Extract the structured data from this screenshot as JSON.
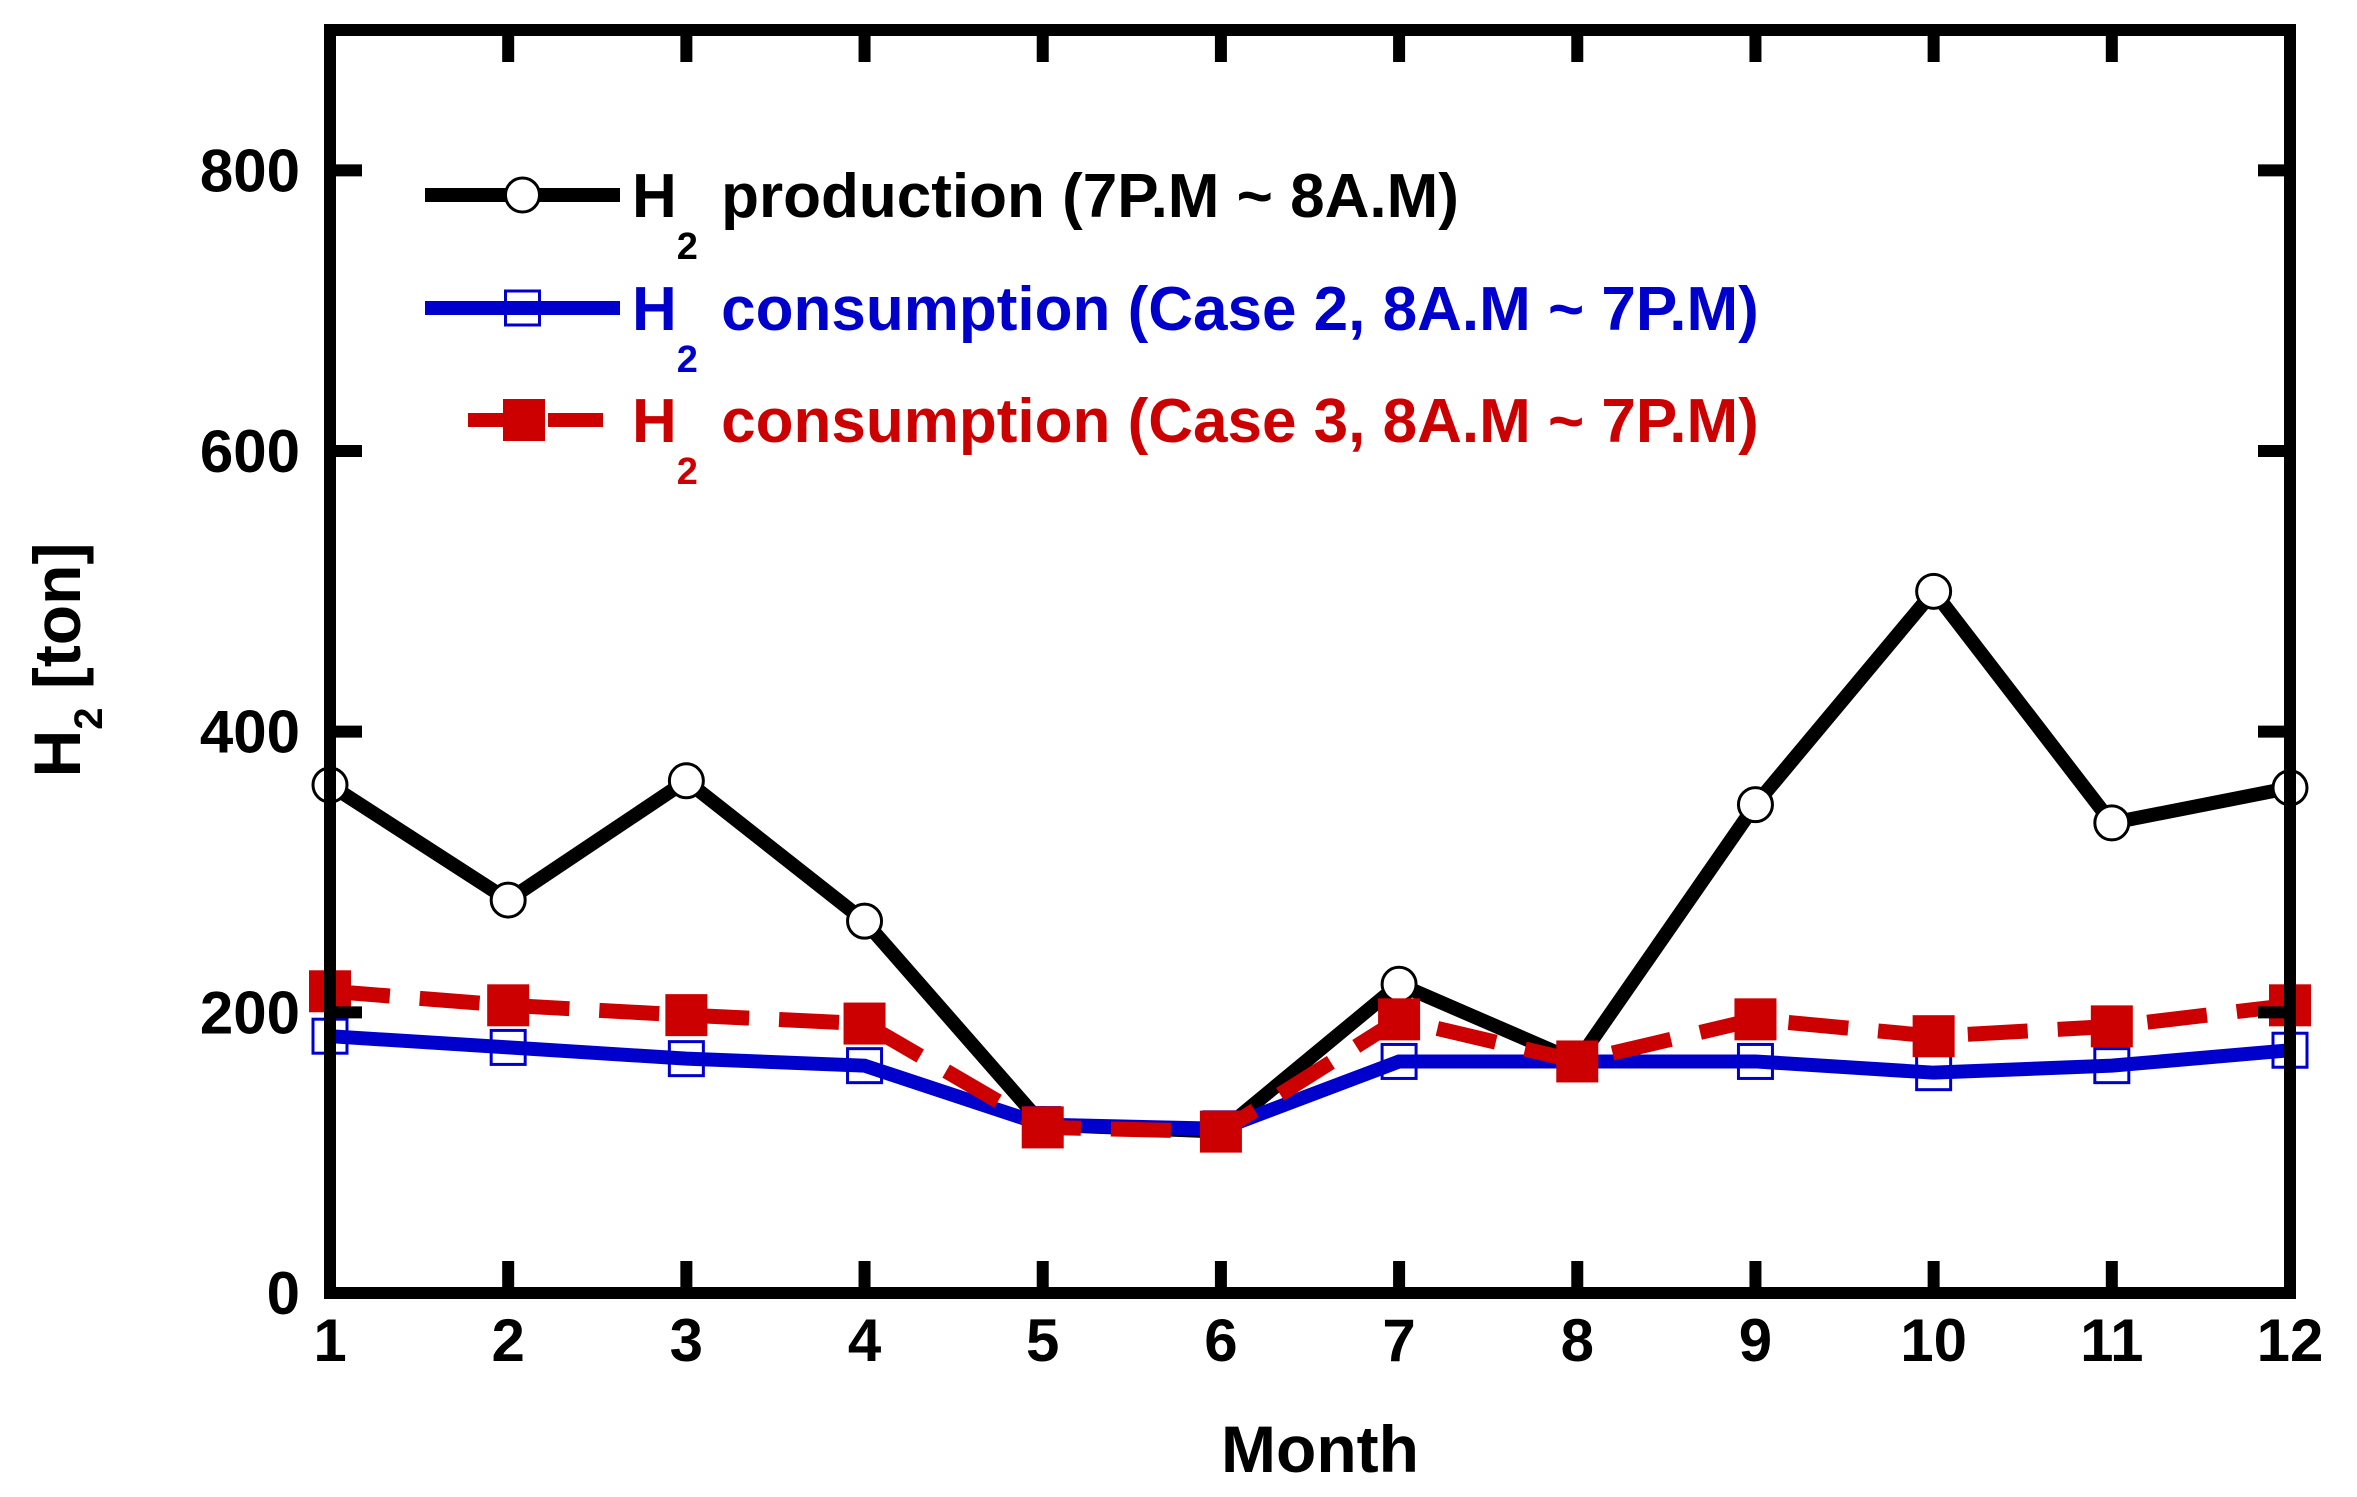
{
  "chart_data": {
    "type": "line",
    "xlabel": "Month",
    "ylabel": "H2 [ton]",
    "ylabel_parts": {
      "main": "H",
      "sub": "2",
      "rest": " [ton]"
    },
    "xlim": [
      1,
      12
    ],
    "ylim": [
      0,
      900
    ],
    "x": [
      1,
      2,
      3,
      4,
      5,
      6,
      7,
      8,
      9,
      10,
      11,
      12
    ],
    "x_ticks": [
      "1",
      "2",
      "3",
      "4",
      "5",
      "6",
      "7",
      "8",
      "9",
      "10",
      "11",
      "12"
    ],
    "y_ticks": [
      0,
      200,
      400,
      600,
      800
    ],
    "y_tick_labels": [
      "0",
      "200",
      "400",
      "600",
      "800"
    ],
    "grid": false,
    "legend_position": "top-left",
    "series": [
      {
        "name": "H2 production (7P.M ~ 8A.M)",
        "legend_main": "H",
        "legend_sub": "2",
        "legend_rest": " production (7P.M ~ 8A.M)",
        "color": "#000000",
        "line_style": "solid",
        "marker": "open-circle",
        "values": [
          362,
          280,
          365,
          265,
          120,
          115,
          220,
          165,
          348,
          500,
          335,
          360
        ]
      },
      {
        "name": "H2 consumption (Case 2, 8A.M ~ 7P.M)",
        "legend_main": "H",
        "legend_sub": "2",
        "legend_rest": " consumption (Case 2, 8A.M ~ 7P.M)",
        "color": "#0000cc",
        "line_style": "solid",
        "marker": "open-square",
        "values": [
          183,
          175,
          167,
          162,
          120,
          117,
          165,
          165,
          165,
          157,
          162,
          173
        ]
      },
      {
        "name": "H2 consumption (Case 3, 8A.M ~ 7P.M)",
        "legend_main": "H",
        "legend_sub": "2",
        "legend_rest": " consumption (Case 3, 8A.M ~ 7P.M)",
        "color": "#cc0000",
        "line_style": "dashed",
        "marker": "filled-square",
        "values": [
          215,
          205,
          198,
          192,
          118,
          115,
          195,
          165,
          195,
          183,
          190,
          205
        ]
      }
    ]
  }
}
